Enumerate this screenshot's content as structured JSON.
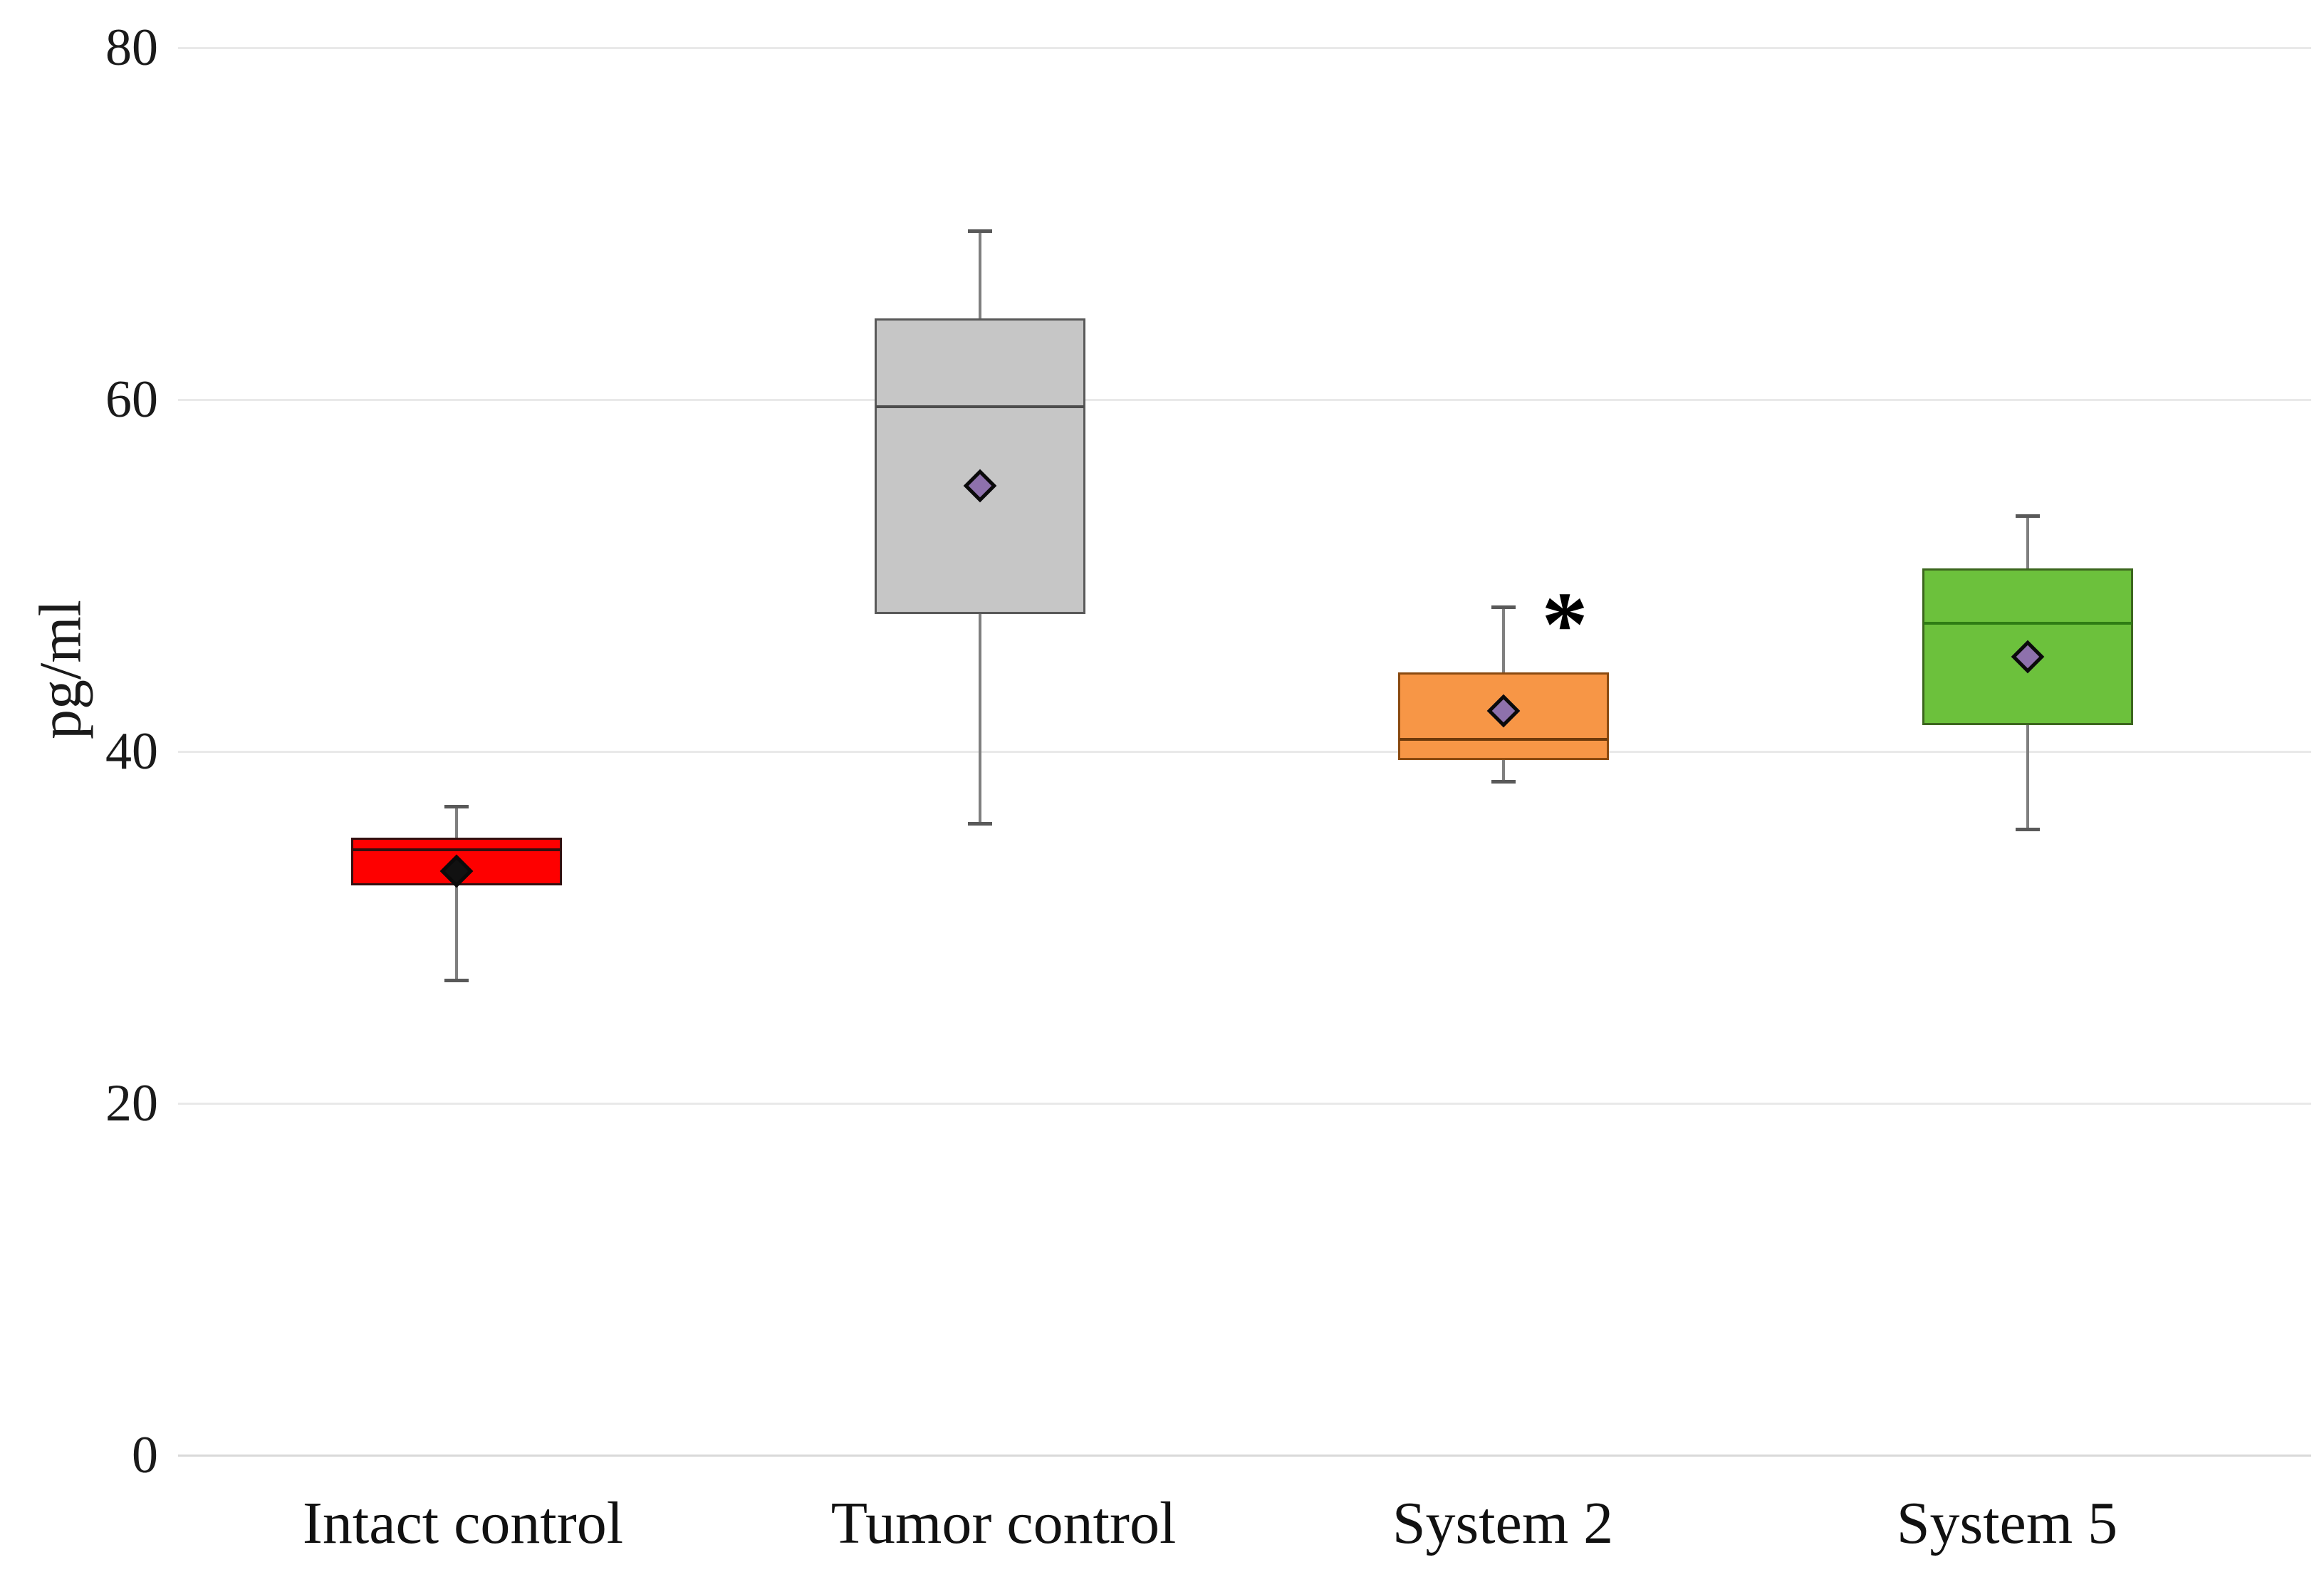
{
  "chart_data": {
    "type": "box",
    "title": "",
    "ylabel": "pg/ml",
    "xlabel": "",
    "ylim": [
      0,
      80
    ],
    "yticks": [
      0,
      20,
      40,
      60,
      80
    ],
    "grid": "horizontal-light",
    "legend": "none",
    "groups": [
      {
        "label": "Intact control",
        "whisker_low": 27.0,
        "q1": 32.4,
        "median": 34.4,
        "q3": 35.1,
        "whisker_high": 36.9,
        "mean": 33.2,
        "annotation": "",
        "box_fill": "#fe0000",
        "box_border": "#331010",
        "median_color": "#331010",
        "mean_fill": "#111111"
      },
      {
        "label": "Tumor control",
        "whisker_low": 35.9,
        "q1": 47.8,
        "median": 59.6,
        "q3": 64.6,
        "whisker_high": 69.6,
        "mean": 55.1,
        "annotation": "",
        "box_fill": "#c6c6c6",
        "box_border": "#595959",
        "median_color": "#4d4d4d",
        "mean_fill": "#8e71ac"
      },
      {
        "label": "System 2",
        "whisker_low": 38.3,
        "q1": 39.5,
        "median": 40.7,
        "q3": 44.5,
        "whisker_high": 48.2,
        "mean": 42.3,
        "annotation": "*",
        "box_fill": "#f79646",
        "box_border": "#8a4a10",
        "median_color": "#6e3a0a",
        "mean_fill": "#8e71ac"
      },
      {
        "label": "System 5",
        "whisker_low": 35.6,
        "q1": 41.5,
        "median": 47.3,
        "q3": 50.4,
        "whisker_high": 53.4,
        "mean": 45.4,
        "annotation": "",
        "box_fill": "#6cc13c",
        "box_border": "#3c661e",
        "median_color": "#2e7d14",
        "mean_fill": "#8e71ac"
      }
    ],
    "annotation_note": "* marks significance above the System 2 upper whisker"
  }
}
